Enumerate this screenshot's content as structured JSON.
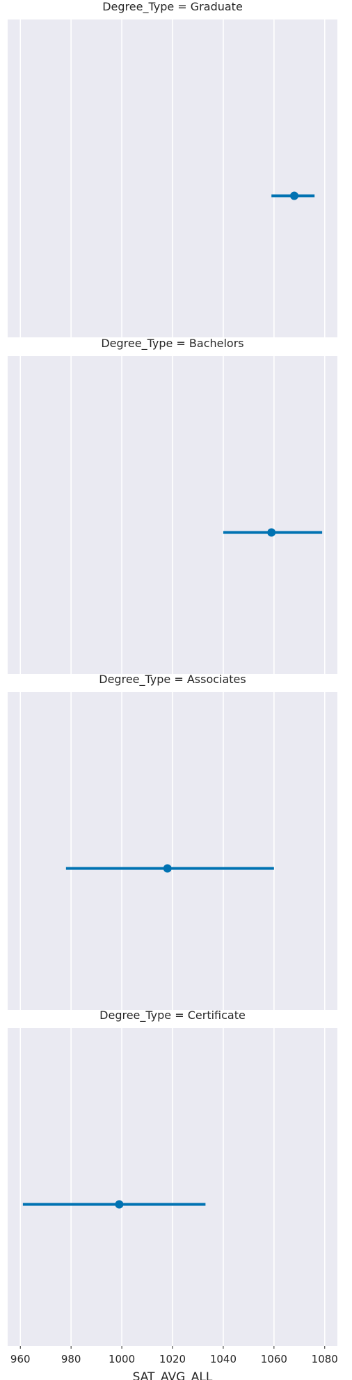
{
  "chart_data": {
    "type": "pointplot",
    "facet_variable": "Degree_Type",
    "xlabel": "SAT_AVG_ALL",
    "ylabel": "",
    "xlim": [
      955,
      1085
    ],
    "xticks": [
      960,
      980,
      1000,
      1020,
      1040,
      1060,
      1080
    ],
    "grid": true,
    "color": "#0072b2",
    "facets": [
      {
        "title": "Degree_Type = Graduate",
        "estimate": 1068,
        "ci_low": 1059,
        "ci_high": 1076
      },
      {
        "title": "Degree_Type = Bachelors",
        "estimate": 1059,
        "ci_low": 1040,
        "ci_high": 1079
      },
      {
        "title": "Degree_Type = Associates",
        "estimate": 1018,
        "ci_low": 978,
        "ci_high": 1060
      },
      {
        "title": "Degree_Type = Certificate",
        "estimate": 999,
        "ci_low": 961,
        "ci_high": 1033
      }
    ]
  }
}
